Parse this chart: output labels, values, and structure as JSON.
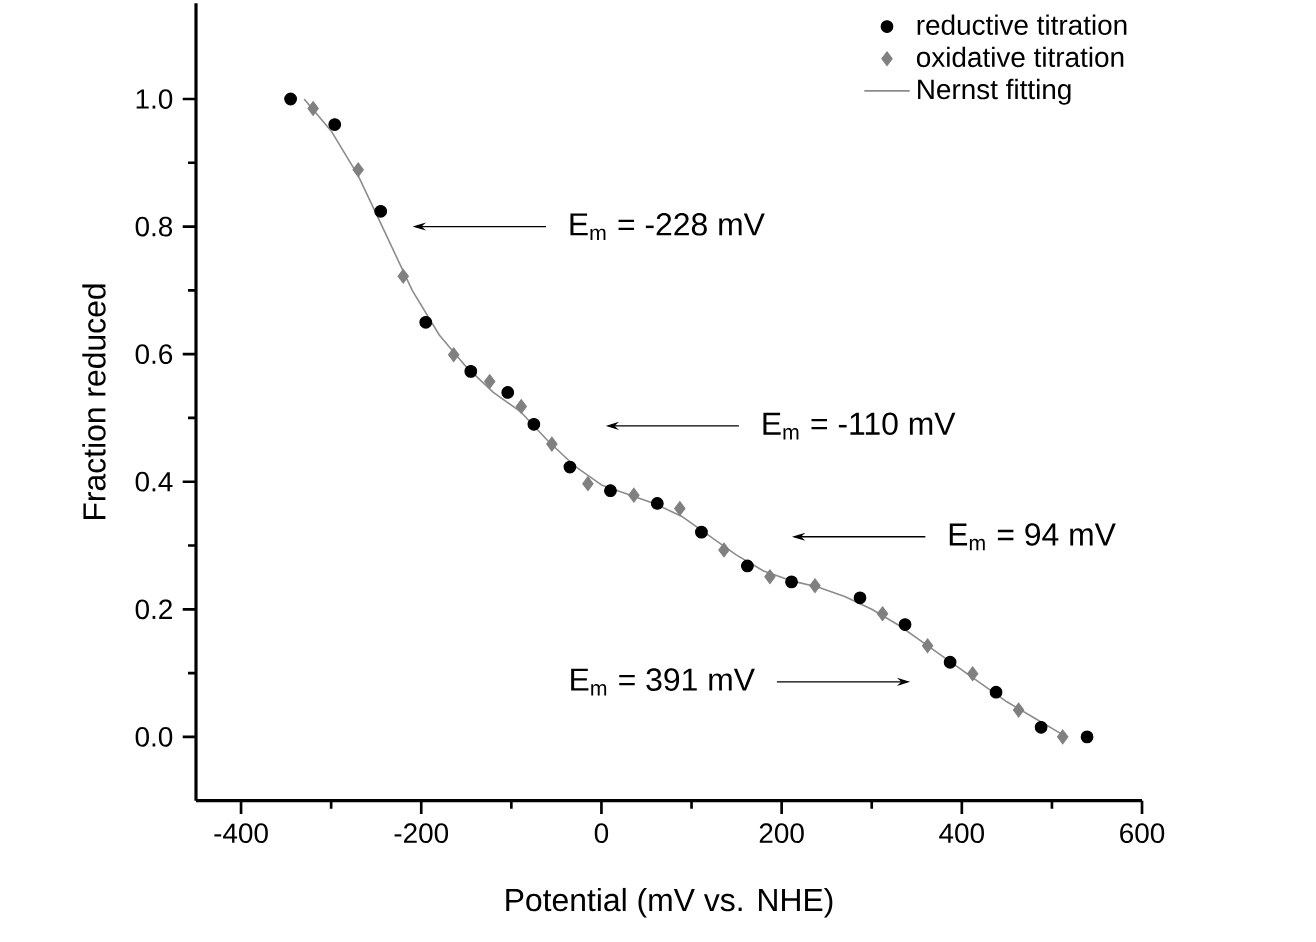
{
  "chart_data": {
    "type": "scatter",
    "xlabel": "Potential (mV vs. NHE)",
    "ylabel": "Fraction reduced",
    "xlim": [
      -450,
      600
    ],
    "ylim": [
      -0.1,
      1.15
    ],
    "xticks": [
      -400,
      -200,
      0,
      200,
      400,
      600
    ],
    "yticks": [
      {
        "value": 0,
        "label": "0.0"
      },
      0.2,
      0.4,
      0.6,
      0.8,
      {
        "value": 1,
        "label": "1.0"
      }
    ],
    "legend": "top right",
    "series": [
      {
        "name": "reductive titration",
        "marker": "circle",
        "color": "#000000",
        "x": [
          -345,
          -296,
          -245,
          -195,
          -145,
          -104,
          -75,
          -35,
          10,
          62,
          111,
          162,
          211,
          287,
          337,
          387,
          438,
          488,
          539
        ],
        "values": [
          1.0,
          0.96,
          0.824,
          0.65,
          0.573,
          0.54,
          0.49,
          0.423,
          0.386,
          0.366,
          0.321,
          0.268,
          0.243,
          0.218,
          0.176,
          0.117,
          0.07,
          0.015,
          0.0
        ]
      },
      {
        "name": "oxidative titration",
        "marker": "diamond",
        "color": "#808080",
        "x": [
          -320,
          -270,
          -220,
          -164,
          -124,
          -89,
          -55,
          -15,
          36,
          87,
          136,
          187,
          237,
          312,
          362,
          412,
          463,
          512
        ],
        "values": [
          0.985,
          0.889,
          0.722,
          0.599,
          0.557,
          0.518,
          0.459,
          0.397,
          0.379,
          0.358,
          0.293,
          0.251,
          0.237,
          0.193,
          0.143,
          0.099,
          0.042,
          0.0
        ]
      },
      {
        "name": "Nernst fitting",
        "type": "line",
        "marker": "none",
        "line_style": "solid",
        "color": "#8c8c8c",
        "x": [
          -330,
          -300,
          -270,
          -240,
          -210,
          -180,
          -150,
          -120,
          -90,
          -60,
          -30,
          0,
          30,
          60,
          90,
          120,
          150,
          180,
          210,
          240,
          270,
          300,
          330,
          360,
          390,
          420,
          450,
          480,
          510
        ],
        "values": [
          1.0,
          0.95,
          0.88,
          0.79,
          0.7,
          0.63,
          0.58,
          0.54,
          0.51,
          0.465,
          0.425,
          0.395,
          0.38,
          0.365,
          0.345,
          0.315,
          0.285,
          0.26,
          0.245,
          0.235,
          0.22,
          0.2,
          0.175,
          0.145,
          0.115,
          0.085,
          0.055,
          0.03,
          0.005
        ]
      }
    ],
    "annotations": [
      "E$_{m}$ = -228 mV",
      "E$_{m}$ = -110 mV",
      "E$_{m}$ = 94 mV",
      "E$_{m}$ = 391 mV"
    ]
  }
}
